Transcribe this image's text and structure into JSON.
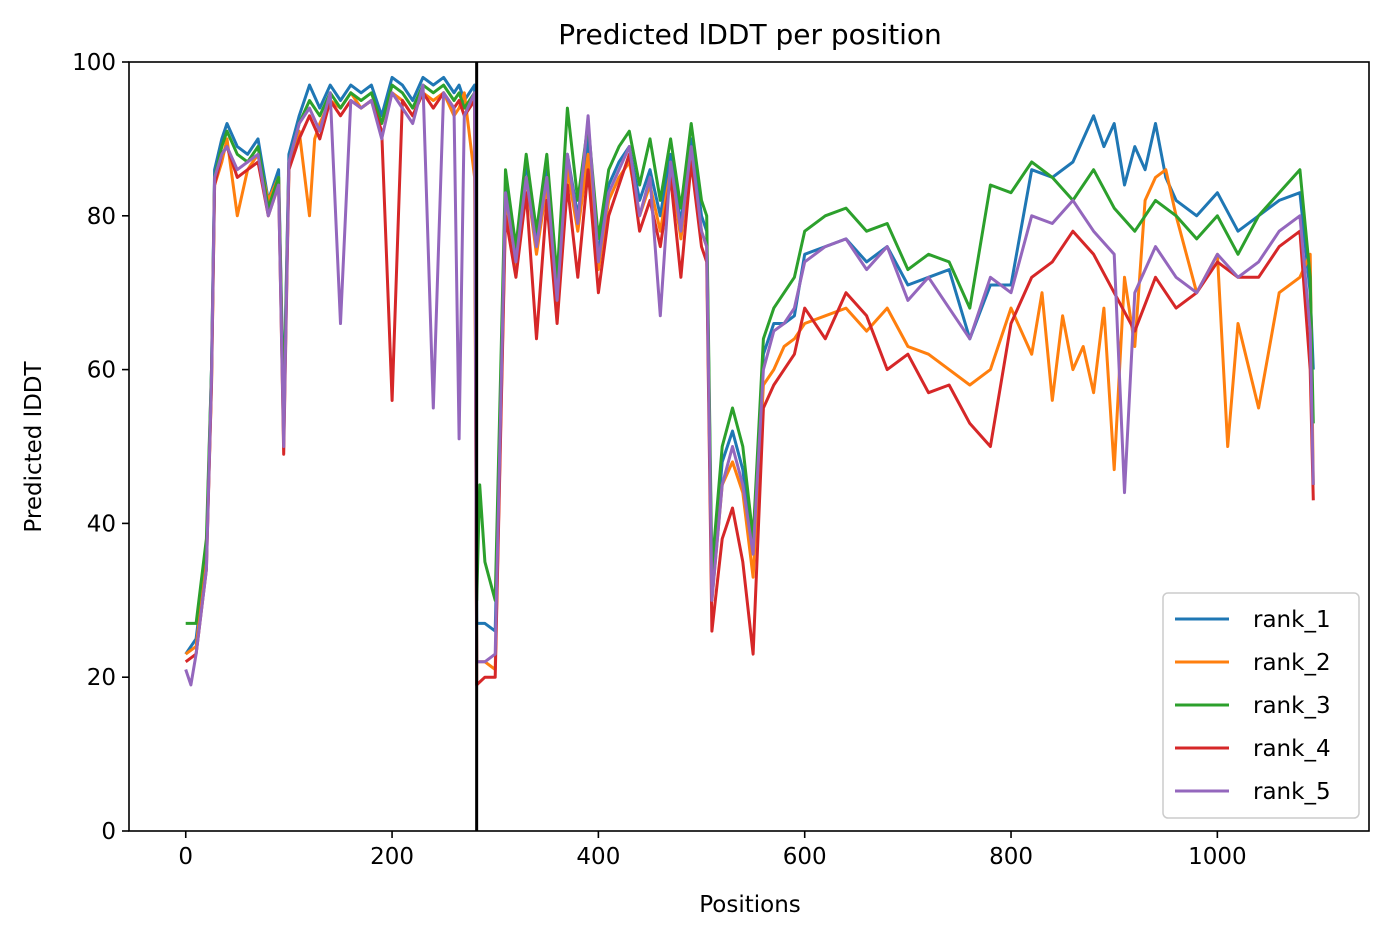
{
  "chart_data": {
    "type": "line",
    "title": "Predicted lDDT per position",
    "xlabel": "Positions",
    "ylabel": "Predicted lDDT",
    "xlim": [
      -55,
      1147
    ],
    "ylim": [
      0,
      100
    ],
    "xticks": [
      0,
      200,
      400,
      600,
      800,
      1000
    ],
    "yticks": [
      0,
      20,
      40,
      60,
      80,
      100
    ],
    "grid": false,
    "legend_position": "lower right",
    "vertical_line": {
      "x": 282,
      "color": "#000000"
    },
    "series": [
      {
        "name": "rank_1",
        "color": "#1f77b4",
        "x": [
          0,
          10,
          20,
          25,
          28,
          35,
          40,
          50,
          60,
          70,
          80,
          90,
          95,
          100,
          110,
          120,
          130,
          140,
          150,
          160,
          170,
          180,
          190,
          200,
          210,
          220,
          230,
          240,
          250,
          260,
          265,
          270,
          280,
          282,
          290,
          300,
          310,
          320,
          330,
          340,
          350,
          360,
          370,
          380,
          390,
          400,
          410,
          420,
          430,
          440,
          450,
          460,
          470,
          480,
          490,
          500,
          505,
          510,
          520,
          530,
          540,
          550,
          560,
          570,
          580,
          590,
          600,
          620,
          640,
          660,
          680,
          700,
          720,
          740,
          760,
          780,
          800,
          820,
          840,
          860,
          880,
          890,
          900,
          910,
          920,
          930,
          940,
          950,
          960,
          980,
          1000,
          1020,
          1040,
          1060,
          1080,
          1090,
          1093
        ],
        "y": [
          23,
          25,
          36,
          60,
          86,
          90,
          92,
          89,
          88,
          90,
          82,
          86,
          55,
          88,
          93,
          97,
          94,
          97,
          95,
          97,
          96,
          97,
          93,
          98,
          97,
          95,
          98,
          97,
          98,
          96,
          97,
          95,
          97,
          27,
          27,
          26,
          84,
          75,
          87,
          77,
          86,
          70,
          88,
          80,
          90,
          75,
          84,
          87,
          89,
          82,
          86,
          80,
          88,
          79,
          90,
          80,
          78,
          32,
          48,
          52,
          47,
          36,
          62,
          66,
          66,
          67,
          75,
          76,
          77,
          74,
          76,
          71,
          72,
          73,
          64,
          71,
          71,
          86,
          85,
          87,
          93,
          89,
          92,
          84,
          89,
          86,
          92,
          85,
          82,
          80,
          83,
          78,
          80,
          82,
          83,
          70,
          60
        ]
      },
      {
        "name": "rank_2",
        "color": "#ff7f0e",
        "x": [
          0,
          10,
          20,
          25,
          28,
          35,
          40,
          50,
          60,
          70,
          80,
          90,
          95,
          100,
          110,
          120,
          125,
          130,
          140,
          150,
          160,
          170,
          180,
          190,
          200,
          210,
          220,
          230,
          240,
          250,
          260,
          265,
          270,
          280,
          282,
          290,
          300,
          310,
          320,
          330,
          340,
          350,
          360,
          370,
          380,
          390,
          400,
          410,
          420,
          430,
          440,
          450,
          460,
          470,
          480,
          490,
          500,
          505,
          510,
          520,
          530,
          540,
          550,
          560,
          570,
          580,
          590,
          600,
          620,
          640,
          660,
          680,
          700,
          720,
          740,
          760,
          780,
          800,
          820,
          830,
          840,
          850,
          860,
          870,
          880,
          890,
          900,
          910,
          920,
          930,
          940,
          950,
          960,
          980,
          1000,
          1010,
          1020,
          1040,
          1060,
          1080,
          1090,
          1093
        ],
        "y": [
          23,
          24,
          35,
          58,
          84,
          87,
          90,
          80,
          86,
          88,
          82,
          85,
          53,
          86,
          91,
          80,
          90,
          92,
          95,
          94,
          96,
          94,
          95,
          92,
          96,
          95,
          93,
          96,
          95,
          96,
          93,
          94,
          96,
          85,
          22,
          22,
          21,
          81,
          73,
          85,
          75,
          84,
          68,
          86,
          78,
          88,
          73,
          82,
          85,
          87,
          80,
          84,
          78,
          86,
          77,
          88,
          78,
          76,
          30,
          45,
          48,
          44,
          33,
          58,
          60,
          63,
          64,
          66,
          67,
          68,
          65,
          68,
          63,
          62,
          60,
          58,
          60,
          68,
          62,
          70,
          56,
          67,
          60,
          63,
          57,
          68,
          47,
          72,
          63,
          82,
          85,
          86,
          80,
          70,
          75,
          50,
          66,
          55,
          70,
          72,
          75,
          45
        ]
      },
      {
        "name": "rank_3",
        "color": "#2ca02c",
        "x": [
          0,
          10,
          20,
          25,
          28,
          35,
          40,
          50,
          60,
          70,
          80,
          90,
          95,
          100,
          110,
          120,
          130,
          140,
          150,
          160,
          170,
          180,
          190,
          200,
          210,
          220,
          230,
          240,
          250,
          260,
          265,
          270,
          280,
          282,
          285,
          290,
          300,
          310,
          320,
          330,
          340,
          350,
          360,
          370,
          380,
          390,
          400,
          410,
          420,
          430,
          440,
          450,
          460,
          470,
          480,
          490,
          500,
          505,
          510,
          520,
          530,
          540,
          550,
          560,
          570,
          580,
          590,
          600,
          620,
          640,
          660,
          680,
          700,
          720,
          740,
          760,
          780,
          800,
          820,
          840,
          860,
          880,
          900,
          920,
          940,
          960,
          980,
          1000,
          1020,
          1040,
          1060,
          1080,
          1090,
          1093
        ],
        "y": [
          27,
          27,
          38,
          60,
          85,
          89,
          91,
          88,
          87,
          89,
          81,
          85,
          54,
          87,
          92,
          95,
          93,
          96,
          94,
          96,
          95,
          96,
          92,
          97,
          96,
          94,
          97,
          96,
          97,
          95,
          96,
          94,
          96,
          30,
          45,
          35,
          30,
          86,
          76,
          88,
          78,
          88,
          72,
          94,
          82,
          92,
          77,
          86,
          89,
          91,
          84,
          90,
          82,
          90,
          81,
          92,
          82,
          80,
          34,
          50,
          55,
          50,
          38,
          64,
          68,
          70,
          72,
          78,
          80,
          81,
          78,
          79,
          73,
          75,
          74,
          68,
          84,
          83,
          87,
          85,
          82,
          86,
          81,
          78,
          82,
          80,
          77,
          80,
          75,
          80,
          83,
          86,
          72,
          53
        ]
      },
      {
        "name": "rank_4",
        "color": "#d62728",
        "x": [
          0,
          10,
          20,
          25,
          28,
          35,
          40,
          50,
          60,
          70,
          80,
          90,
          95,
          100,
          110,
          120,
          130,
          140,
          150,
          160,
          170,
          180,
          190,
          200,
          210,
          220,
          230,
          240,
          250,
          260,
          265,
          270,
          280,
          282,
          290,
          300,
          310,
          320,
          330,
          340,
          350,
          360,
          370,
          380,
          390,
          400,
          410,
          420,
          430,
          440,
          450,
          460,
          470,
          480,
          490,
          500,
          505,
          510,
          520,
          530,
          540,
          550,
          560,
          570,
          580,
          590,
          600,
          620,
          640,
          660,
          680,
          700,
          720,
          740,
          760,
          780,
          800,
          820,
          840,
          860,
          880,
          900,
          920,
          940,
          960,
          980,
          1000,
          1020,
          1040,
          1060,
          1080,
          1090,
          1093
        ],
        "y": [
          22,
          23,
          34,
          58,
          84,
          88,
          89,
          85,
          86,
          87,
          80,
          84,
          49,
          86,
          90,
          93,
          90,
          95,
          93,
          95,
          94,
          95,
          91,
          56,
          95,
          93,
          96,
          94,
          96,
          94,
          95,
          93,
          95,
          19,
          20,
          20,
          80,
          72,
          83,
          64,
          82,
          66,
          84,
          72,
          86,
          70,
          80,
          84,
          88,
          78,
          82,
          76,
          85,
          72,
          87,
          76,
          74,
          26,
          38,
          42,
          35,
          23,
          55,
          58,
          60,
          62,
          68,
          64,
          70,
          67,
          60,
          62,
          57,
          58,
          53,
          50,
          66,
          72,
          74,
          78,
          75,
          70,
          65,
          72,
          68,
          70,
          74,
          72,
          72,
          76,
          78,
          60,
          43
        ]
      },
      {
        "name": "rank_5",
        "color": "#9467bd",
        "x": [
          0,
          5,
          10,
          20,
          25,
          28,
          35,
          40,
          50,
          60,
          70,
          80,
          90,
          95,
          100,
          110,
          120,
          130,
          140,
          150,
          160,
          170,
          180,
          190,
          200,
          210,
          220,
          230,
          240,
          250,
          260,
          265,
          270,
          280,
          282,
          290,
          300,
          310,
          320,
          330,
          340,
          350,
          360,
          370,
          380,
          390,
          400,
          410,
          420,
          430,
          440,
          450,
          460,
          470,
          480,
          490,
          500,
          505,
          510,
          520,
          530,
          540,
          550,
          560,
          570,
          580,
          590,
          600,
          620,
          640,
          660,
          680,
          700,
          720,
          740,
          760,
          780,
          800,
          820,
          840,
          860,
          880,
          900,
          910,
          920,
          940,
          960,
          980,
          1000,
          1020,
          1040,
          1060,
          1080,
          1090,
          1093
        ],
        "y": [
          21,
          19,
          23,
          34,
          59,
          85,
          88,
          89,
          86,
          87,
          88,
          80,
          84,
          50,
          87,
          92,
          94,
          91,
          96,
          66,
          95,
          94,
          95,
          90,
          96,
          94,
          92,
          97,
          55,
          96,
          94,
          51,
          93,
          96,
          22,
          22,
          23,
          83,
          74,
          85,
          76,
          85,
          69,
          88,
          79,
          93,
          74,
          83,
          86,
          89,
          80,
          85,
          67,
          87,
          78,
          89,
          78,
          76,
          30,
          45,
          50,
          45,
          36,
          60,
          65,
          66,
          68,
          74,
          76,
          77,
          73,
          76,
          69,
          72,
          68,
          64,
          72,
          70,
          80,
          79,
          82,
          78,
          75,
          44,
          70,
          76,
          72,
          70,
          75,
          72,
          74,
          78,
          80,
          65,
          45
        ]
      }
    ]
  }
}
